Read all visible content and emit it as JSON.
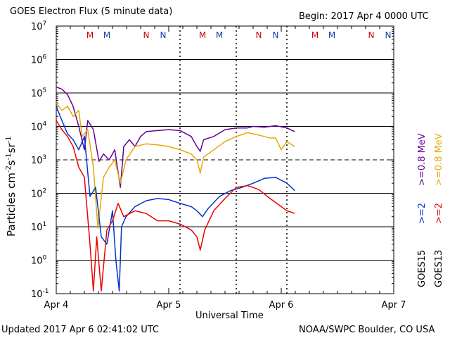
{
  "colors": {
    "goes15_gt2": "#0033cc",
    "goes15_gt08": "#660099",
    "goes13_gt2": "#ee0000",
    "goes13_gt08": "#e6a800",
    "marker_m_goes15": "#1a3d99",
    "marker_n_goes13": "#cc0000"
  },
  "chart_data": {
    "type": "line",
    "title": "GOES Electron Flux (5 minute data)",
    "begin_label": "Begin: 2017 Apr 4 0000 UTC",
    "xlabel": "Universal Time",
    "ylabel_html": "Particles cm⁻²s⁻¹sr⁻¹",
    "ylabel_parts": [
      "Particles cm",
      "-2",
      "s",
      "-1",
      "sr",
      "-1"
    ],
    "updated": "Updated 2017 Apr  6 02:41:02 UTC",
    "credit": "NOAA/SWPC Boulder, CO USA",
    "y_scale": "log",
    "ylim": [
      0.1,
      10000000
    ],
    "xlim_days": [
      0,
      3
    ],
    "x_ticks": [
      {
        "day": 0,
        "label": "Apr 4"
      },
      {
        "day": 1,
        "label": "Apr 5"
      },
      {
        "day": 2,
        "label": "Apr 6"
      },
      {
        "day": 3,
        "label": "Apr 7"
      }
    ],
    "y_ticks": [
      {
        "base": "10",
        "exp": "-1",
        "value": 0.1
      },
      {
        "base": "10",
        "exp": "0",
        "value": 1
      },
      {
        "base": "10",
        "exp": "1",
        "value": 10
      },
      {
        "base": "10",
        "exp": "2",
        "value": 100
      },
      {
        "base": "10",
        "exp": "3",
        "value": 1000
      },
      {
        "base": "10",
        "exp": "4",
        "value": 10000
      },
      {
        "base": "10",
        "exp": "5",
        "value": 100000
      },
      {
        "base": "10",
        "exp": "6",
        "value": 1000000
      },
      {
        "base": "10",
        "exp": "7",
        "value": 10000000
      }
    ],
    "grid_solid_y": [
      1,
      10,
      100,
      10000,
      100000,
      1000000
    ],
    "grid_dashed_y": [
      1000
    ],
    "dotted_x_days": [
      1.1,
      1.6,
      2.05
    ],
    "markers": [
      {
        "day": 0.3,
        "label": "M",
        "color": "#cc0000"
      },
      {
        "day": 0.45,
        "label": "M",
        "color": "#1a3d99"
      },
      {
        "day": 0.8,
        "label": "N",
        "color": "#cc0000"
      },
      {
        "day": 0.95,
        "label": "N",
        "color": "#1a3d99"
      },
      {
        "day": 1.3,
        "label": "M",
        "color": "#cc0000"
      },
      {
        "day": 1.45,
        "label": "M",
        "color": "#1a3d99"
      },
      {
        "day": 1.8,
        "label": "N",
        "color": "#cc0000"
      },
      {
        "day": 1.95,
        "label": "N",
        "color": "#1a3d99"
      },
      {
        "day": 2.3,
        "label": "M",
        "color": "#cc0000"
      },
      {
        "day": 2.45,
        "label": "M",
        "color": "#1a3d99"
      },
      {
        "day": 2.8,
        "label": "N",
        "color": "#cc0000"
      },
      {
        "day": 2.95,
        "label": "N",
        "color": "#1a3d99"
      }
    ],
    "legend": [
      {
        "sat": "GOES15",
        "energies": [
          {
            "label": ">=2",
            "color": "#0033cc"
          },
          {
            "label": ">=0.8 MeV",
            "color": "#660099"
          }
        ]
      },
      {
        "sat": "GOES13",
        "energies": [
          {
            "label": ">=2",
            "color": "#ee0000"
          },
          {
            "label": ">=0.8 MeV",
            "color": "#e6a800"
          }
        ]
      }
    ],
    "series": [
      {
        "name": "GOES15 >=0.8 MeV",
        "color": "#660099",
        "points": [
          [
            0,
            150000
          ],
          [
            0.05,
            130000
          ],
          [
            0.1,
            90000
          ],
          [
            0.15,
            40000
          ],
          [
            0.2,
            10000
          ],
          [
            0.25,
            2000
          ],
          [
            0.28,
            15000
          ],
          [
            0.33,
            8000
          ],
          [
            0.38,
            900
          ],
          [
            0.42,
            1500
          ],
          [
            0.47,
            1000
          ],
          [
            0.52,
            2000
          ],
          [
            0.57,
            150
          ],
          [
            0.6,
            2500
          ],
          [
            0.65,
            4000
          ],
          [
            0.7,
            2500
          ],
          [
            0.75,
            5000
          ],
          [
            0.8,
            7000
          ],
          [
            0.9,
            7500
          ],
          [
            1,
            8000
          ],
          [
            1.1,
            7500
          ],
          [
            1.2,
            5000
          ],
          [
            1.25,
            2500
          ],
          [
            1.28,
            1800
          ],
          [
            1.31,
            4000
          ],
          [
            1.4,
            5000
          ],
          [
            1.5,
            8000
          ],
          [
            1.6,
            9000
          ],
          [
            1.7,
            9000
          ],
          [
            1.75,
            10000
          ],
          [
            1.85,
            9500
          ],
          [
            1.95,
            10500
          ],
          [
            2.05,
            9000
          ],
          [
            2.12,
            7000
          ]
        ]
      },
      {
        "name": "GOES13 >=0.8 MeV",
        "color": "#e6a800",
        "points": [
          [
            0,
            50000
          ],
          [
            0.05,
            30000
          ],
          [
            0.1,
            40000
          ],
          [
            0.15,
            20000
          ],
          [
            0.2,
            30000
          ],
          [
            0.23,
            5000
          ],
          [
            0.28,
            8000
          ],
          [
            0.33,
            600
          ],
          [
            0.37,
            9
          ],
          [
            0.42,
            300
          ],
          [
            0.47,
            600
          ],
          [
            0.52,
            1000
          ],
          [
            0.57,
            200
          ],
          [
            0.62,
            1000
          ],
          [
            0.7,
            2500
          ],
          [
            0.8,
            3000
          ],
          [
            0.9,
            2800
          ],
          [
            1,
            2500
          ],
          [
            1.1,
            2000
          ],
          [
            1.2,
            1500
          ],
          [
            1.25,
            1000
          ],
          [
            1.28,
            400
          ],
          [
            1.31,
            1200
          ],
          [
            1.4,
            2000
          ],
          [
            1.5,
            3500
          ],
          [
            1.6,
            5000
          ],
          [
            1.7,
            6500
          ],
          [
            1.8,
            5500
          ],
          [
            1.9,
            4500
          ],
          [
            1.95,
            4500
          ],
          [
            2,
            2000
          ],
          [
            2.05,
            3500
          ],
          [
            2.12,
            2500
          ]
        ]
      },
      {
        "name": "GOES15 >=2 MeV",
        "color": "#0033cc",
        "points": [
          [
            0,
            40000
          ],
          [
            0.05,
            15000
          ],
          [
            0.1,
            6000
          ],
          [
            0.15,
            4000
          ],
          [
            0.2,
            2000
          ],
          [
            0.25,
            5000
          ],
          [
            0.3,
            80
          ],
          [
            0.35,
            150
          ],
          [
            0.4,
            5
          ],
          [
            0.45,
            3
          ],
          [
            0.5,
            30
          ],
          [
            0.53,
            1
          ],
          [
            0.56,
            0.12
          ],
          [
            0.58,
            10
          ],
          [
            0.62,
            20
          ],
          [
            0.7,
            40
          ],
          [
            0.8,
            60
          ],
          [
            0.9,
            70
          ],
          [
            1,
            65
          ],
          [
            1.1,
            50
          ],
          [
            1.2,
            40
          ],
          [
            1.25,
            30
          ],
          [
            1.3,
            20
          ],
          [
            1.35,
            35
          ],
          [
            1.45,
            80
          ],
          [
            1.55,
            120
          ],
          [
            1.65,
            150
          ],
          [
            1.75,
            200
          ],
          [
            1.85,
            280
          ],
          [
            1.95,
            300
          ],
          [
            2.05,
            200
          ],
          [
            2.12,
            120
          ]
        ]
      },
      {
        "name": "GOES13 >=2 MeV",
        "color": "#ee0000",
        "points": [
          [
            0,
            15000
          ],
          [
            0.05,
            8000
          ],
          [
            0.1,
            5000
          ],
          [
            0.15,
            2500
          ],
          [
            0.2,
            600
          ],
          [
            0.25,
            300
          ],
          [
            0.3,
            3
          ],
          [
            0.33,
            0.12
          ],
          [
            0.36,
            5
          ],
          [
            0.4,
            0.12
          ],
          [
            0.45,
            8
          ],
          [
            0.5,
            15
          ],
          [
            0.55,
            50
          ],
          [
            0.6,
            20
          ],
          [
            0.7,
            30
          ],
          [
            0.8,
            25
          ],
          [
            0.9,
            15
          ],
          [
            1,
            15
          ],
          [
            1.1,
            12
          ],
          [
            1.2,
            8
          ],
          [
            1.25,
            5
          ],
          [
            1.28,
            2
          ],
          [
            1.32,
            8
          ],
          [
            1.4,
            30
          ],
          [
            1.5,
            70
          ],
          [
            1.6,
            150
          ],
          [
            1.7,
            170
          ],
          [
            1.8,
            130
          ],
          [
            1.9,
            70
          ],
          [
            2,
            40
          ],
          [
            2.05,
            30
          ],
          [
            2.12,
            25
          ]
        ]
      }
    ]
  }
}
